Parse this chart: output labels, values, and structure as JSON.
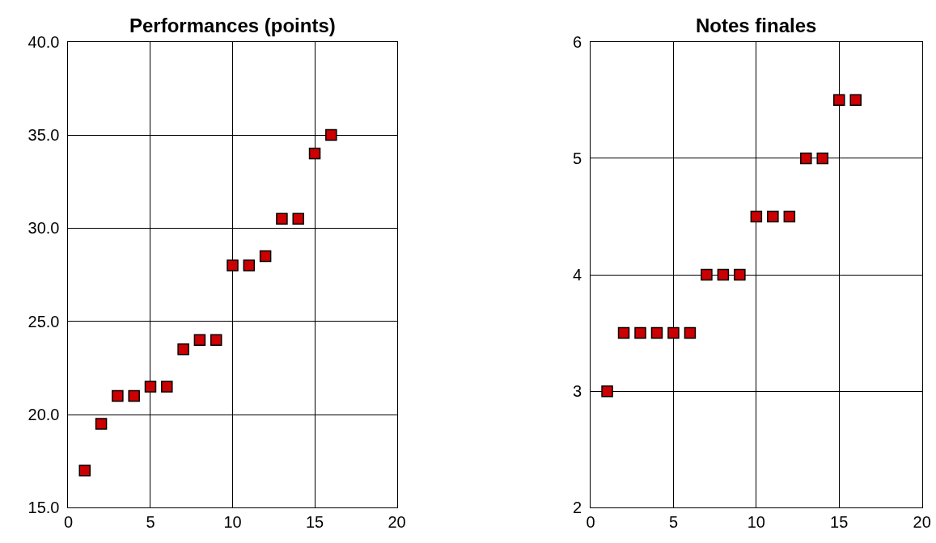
{
  "chart_data": [
    {
      "type": "scatter",
      "title": "Performances (points)",
      "x": [
        1,
        2,
        3,
        4,
        5,
        6,
        7,
        8,
        9,
        10,
        11,
        12,
        13,
        14,
        15,
        16
      ],
      "series": [
        {
          "color": "#cc0000",
          "values": [
            17,
            19.5,
            21,
            21,
            21.5,
            21.5,
            23.5,
            24,
            24,
            28,
            28,
            28.5,
            30.5,
            30.5,
            34,
            35
          ]
        }
      ],
      "marker": "square",
      "grid": true,
      "xlim": [
        0,
        20
      ],
      "xticks": [
        0,
        5,
        10,
        15,
        20
      ],
      "ylim": [
        15,
        40
      ],
      "yticks": [
        {
          "value": 15,
          "label": "15.0"
        },
        {
          "value": 20,
          "label": "20.0"
        },
        {
          "value": 25,
          "label": "25.0"
        },
        {
          "value": 30,
          "label": "30.0"
        },
        {
          "value": 35,
          "label": "35.0"
        },
        {
          "value": 40,
          "label": "40.0"
        }
      ]
    },
    {
      "type": "scatter",
      "title": "Notes finales",
      "x": [
        1,
        2,
        3,
        4,
        5,
        6,
        7,
        8,
        9,
        10,
        11,
        12,
        13,
        14,
        15,
        16
      ],
      "series": [
        {
          "color": "#cc0000",
          "values": [
            3,
            3.5,
            3.5,
            3.5,
            3.5,
            3.5,
            4,
            4,
            4,
            4.5,
            4.5,
            4.5,
            5,
            5,
            5.5,
            5.5
          ]
        }
      ],
      "marker": "square",
      "grid": true,
      "xlim": [
        0,
        20
      ],
      "xticks": [
        0,
        5,
        10,
        15,
        20
      ],
      "ylim": [
        2,
        6
      ],
      "yticks": [
        2,
        3,
        4,
        5,
        6
      ]
    }
  ]
}
